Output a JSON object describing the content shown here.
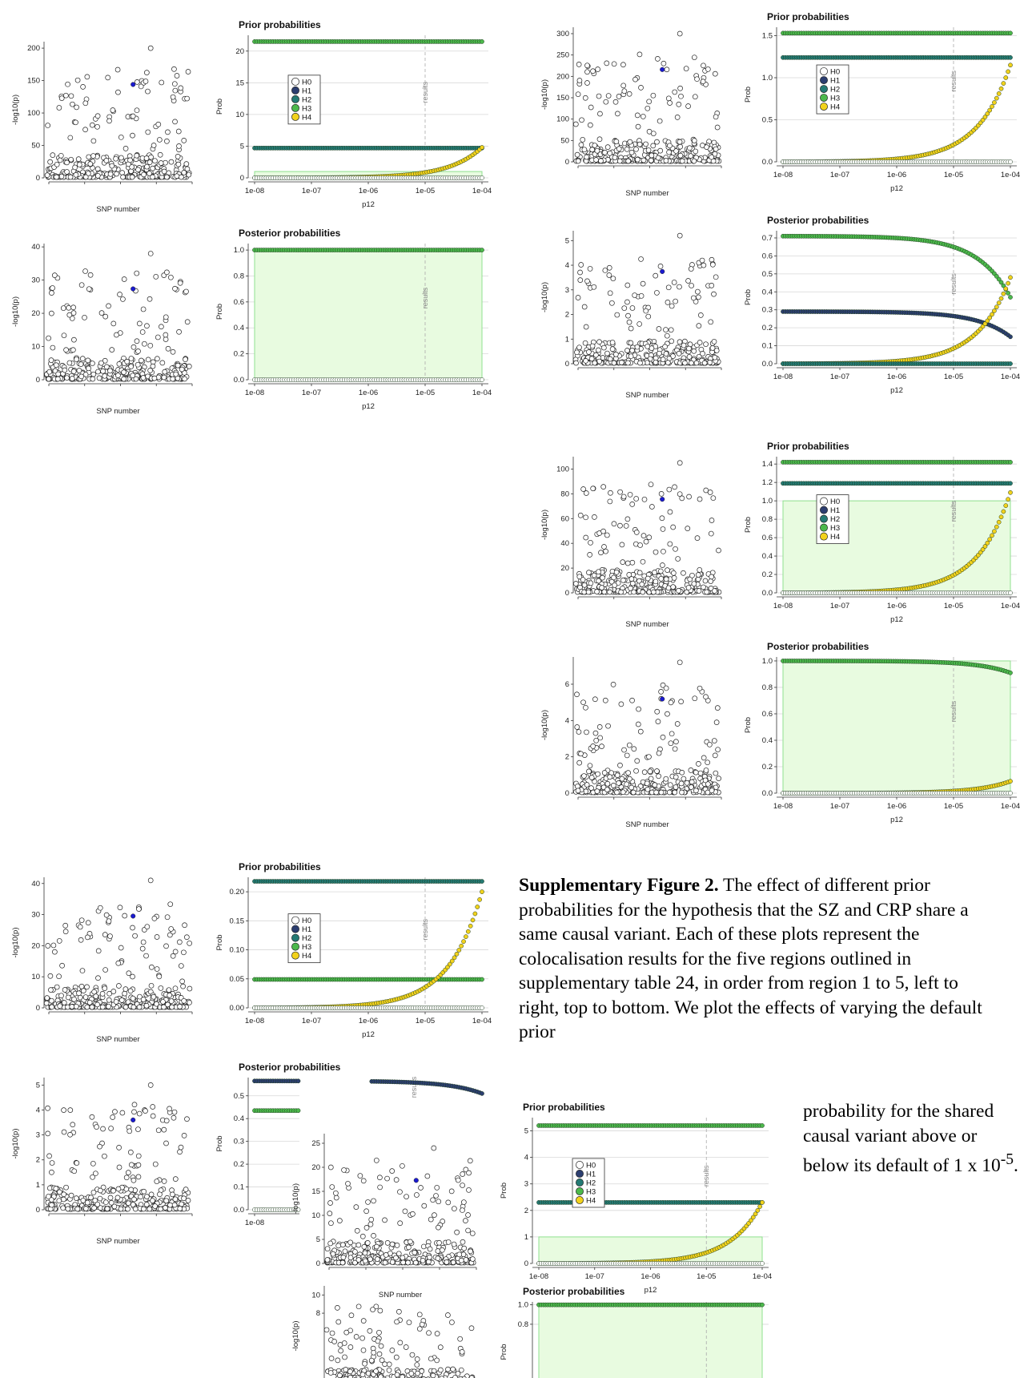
{
  "caption": {
    "label": "Supplementary Figure 2.",
    "text": " The effect of different prior probabilities for the hypothesis that the SZ and CRP share a same causal variant. Each of these plots represent the colocalisation results for the five regions outlined in supplementary table 24, in order from region 1 to 5, left to right, top to bottom. We plot the effects of varying the default prior",
    "tail_pre": "probability for the shared causal variant above or below its default of 1 x 10",
    "tail_sup": "-5",
    "tail_post": "."
  },
  "colors": {
    "H0": "#ffffff",
    "H1": "#2c3e70",
    "H2": "#247a74",
    "H3": "#4cb94c",
    "H4": "#f2d21c",
    "shade": "#e8fbe0",
    "shade_edge": "#8fe08f",
    "highlight_snp": "#1a1ad0"
  },
  "chart_data": [
    {
      "id": "r1-manhattan-prior",
      "type": "scatter",
      "xlabel": "SNP number",
      "ylabel": "-log10(p)",
      "yticks": [
        "0",
        "50",
        "100",
        "150",
        "200"
      ],
      "ylim": [
        0,
        210
      ],
      "lead_value": 200
    },
    {
      "id": "r1-prior",
      "type": "line",
      "title": "Prior probabilities",
      "xlabel": "p12",
      "ylabel": "Prob",
      "xticks": [
        "1e-08",
        "1e-07",
        "1e-06",
        "1e-05",
        "1e-04"
      ],
      "yticks": [
        "0",
        "5",
        "10",
        "15",
        "20"
      ],
      "ylim": [
        0,
        22.5
      ],
      "legend_position": "left",
      "legend": [
        "H0",
        "H1",
        "H2",
        "H3",
        "H4"
      ],
      "results_label": "results",
      "results_at": "1e-05",
      "shade_top": 1,
      "series": [
        {
          "name": "H3",
          "start": 21.5,
          "end": 21.5
        },
        {
          "name": "H2",
          "start": 4.7,
          "end": 4.7
        },
        {
          "name": "H4",
          "start": 0.002,
          "end": 4.8
        },
        {
          "name": "H0",
          "start": 0.0,
          "end": 0.0
        }
      ]
    },
    {
      "id": "r1-manhattan-posterior",
      "type": "scatter",
      "xlabel": "SNP number",
      "ylabel": "-log10(p)",
      "yticks": [
        "0",
        "10",
        "20",
        "30",
        "40"
      ],
      "ylim": [
        0,
        41
      ],
      "lead_value": 38
    },
    {
      "id": "r1-posterior",
      "type": "line",
      "title": "Posterior probabilities",
      "xlabel": "p12",
      "ylabel": "Prob",
      "xticks": [
        "1e-08",
        "1e-07",
        "1e-06",
        "1e-05",
        "1e-04"
      ],
      "yticks": [
        "0.0",
        "0.2",
        "0.4",
        "0.6",
        "0.8",
        "1.0"
      ],
      "ylim": [
        0,
        1.05
      ],
      "results_label": "results",
      "results_at": "1e-05",
      "shade_top": 1,
      "series": [
        {
          "name": "H3",
          "start": 1.0,
          "end": 1.0
        },
        {
          "name": "H0",
          "start": 0.0,
          "end": 0.0
        }
      ]
    },
    {
      "id": "r2-manhattan-prior",
      "type": "scatter",
      "xlabel": "SNP number",
      "ylabel": "-log10(p)",
      "yticks": [
        "0",
        "50",
        "100",
        "150",
        "200",
        "250",
        "300"
      ],
      "ylim": [
        0,
        315
      ],
      "lead_value": 300
    },
    {
      "id": "r2-prior",
      "type": "line",
      "title": "Prior probabilities",
      "xlabel": "p12",
      "ylabel": "Prob",
      "xticks": [
        "1e-08",
        "1e-07",
        "1e-06",
        "1e-05",
        "1e-04"
      ],
      "yticks": [
        "0.0",
        "0.5",
        "1.0",
        "1.5"
      ],
      "ylim": [
        0,
        1.6
      ],
      "legend_position": "left",
      "legend": [
        "H0",
        "H1",
        "H2",
        "H3",
        "H4"
      ],
      "results_label": "results",
      "results_at": "1e-05",
      "series": [
        {
          "name": "H3",
          "start": 1.53,
          "end": 1.53
        },
        {
          "name": "H2",
          "start": 1.24,
          "end": 1.24
        },
        {
          "name": "H4",
          "start": 0.0001,
          "end": 1.15
        },
        {
          "name": "H0",
          "start": 0.0,
          "end": 0.0
        }
      ]
    },
    {
      "id": "r2-manhattan-posterior",
      "type": "scatter",
      "xlabel": "SNP number",
      "ylabel": "-log10(p)",
      "yticks": [
        "0",
        "1",
        "2",
        "3",
        "4",
        "5"
      ],
      "ylim": [
        0,
        5.4
      ],
      "lead_value": 5.2
    },
    {
      "id": "r2-posterior",
      "type": "line",
      "title": "Posterior probabilities",
      "xlabel": "p12",
      "ylabel": "Prob",
      "xticks": [
        "1e-08",
        "1e-07",
        "1e-06",
        "1e-05",
        "1e-04"
      ],
      "yticks": [
        "0.0",
        "0.1",
        "0.2",
        "0.3",
        "0.4",
        "0.5",
        "0.6",
        "0.7"
      ],
      "ylim": [
        0,
        0.74
      ],
      "results_label": "results",
      "results_at": "1e-05",
      "series": [
        {
          "name": "H3",
          "start": 0.71,
          "end": 0.37,
          "curve": "decay"
        },
        {
          "name": "H1",
          "start": 0.29,
          "end": 0.15,
          "curve": "decay"
        },
        {
          "name": "H4",
          "start": 0.0001,
          "end": 0.48
        },
        {
          "name": "H2",
          "start": 0.0,
          "end": 0.0
        }
      ]
    },
    {
      "id": "r3-manhattan-prior",
      "type": "scatter",
      "xlabel": "SNP number",
      "ylabel": "-log10(p)",
      "yticks": [
        "0",
        "20",
        "40",
        "60",
        "80",
        "100"
      ],
      "ylim": [
        0,
        110
      ],
      "lead_value": 105
    },
    {
      "id": "r3-prior",
      "type": "line",
      "title": "Prior probabilities",
      "xlabel": "p12",
      "ylabel": "Prob",
      "xticks": [
        "1e-08",
        "1e-07",
        "1e-06",
        "1e-05",
        "1e-04"
      ],
      "yticks": [
        "0.0",
        "0.2",
        "0.4",
        "0.6",
        "0.8",
        "1.0",
        "1.2",
        "1.4"
      ],
      "ylim": [
        0,
        1.48
      ],
      "legend_position": "left",
      "legend": [
        "H0",
        "H1",
        "H2",
        "H3",
        "H4"
      ],
      "results_label": "results",
      "results_at": "1e-05",
      "shade_top": 1,
      "series": [
        {
          "name": "H3",
          "start": 1.42,
          "end": 1.42
        },
        {
          "name": "H2",
          "start": 1.19,
          "end": 1.19
        },
        {
          "name": "H4",
          "start": 0.0001,
          "end": 1.09
        },
        {
          "name": "H0",
          "start": 0.0,
          "end": 0.0
        }
      ]
    },
    {
      "id": "r3-manhattan-posterior",
      "type": "scatter",
      "xlabel": "SNP number",
      "ylabel": "-log10(p)",
      "yticks": [
        "0",
        "2",
        "4",
        "6"
      ],
      "ylim": [
        0,
        7.5
      ],
      "lead_value": 7.2
    },
    {
      "id": "r3-posterior",
      "type": "line",
      "title": "Posterior probabilities",
      "xlabel": "p12",
      "ylabel": "Prob",
      "xticks": [
        "1e-08",
        "1e-07",
        "1e-06",
        "1e-05",
        "1e-04"
      ],
      "yticks": [
        "0.0",
        "0.2",
        "0.4",
        "0.6",
        "0.8",
        "1.0"
      ],
      "ylim": [
        0,
        1.03
      ],
      "results_label": "results",
      "results_at": "1e-05",
      "shade_top": 1,
      "series": [
        {
          "name": "H3",
          "start": 1.0,
          "end": 0.91,
          "curve": "decay"
        },
        {
          "name": "H4",
          "start": 0.0,
          "end": 0.09
        },
        {
          "name": "H0",
          "start": 0.0,
          "end": 0.0
        }
      ]
    },
    {
      "id": "r4-manhattan-prior",
      "type": "scatter",
      "xlabel": "SNP number",
      "ylabel": "-log10(p)",
      "yticks": [
        "0",
        "10",
        "20",
        "30",
        "40"
      ],
      "ylim": [
        0,
        42
      ],
      "lead_value": 41
    },
    {
      "id": "r4-prior",
      "type": "line",
      "title": "Prior probabilities",
      "xlabel": "p12",
      "ylabel": "Prob",
      "xticks": [
        "1e-08",
        "1e-07",
        "1e-06",
        "1e-05",
        "1e-04"
      ],
      "yticks": [
        "0.00",
        "0.05",
        "0.10",
        "0.15",
        "0.20"
      ],
      "ylim": [
        0,
        0.225
      ],
      "legend_position": "left",
      "legend": [
        "H0",
        "H1",
        "H2",
        "H3",
        "H4"
      ],
      "results_label": "results",
      "results_at": "1e-05",
      "series": [
        {
          "name": "H2",
          "start": 0.218,
          "end": 0.218
        },
        {
          "name": "H3",
          "start": 0.049,
          "end": 0.049
        },
        {
          "name": "H4",
          "start": 2e-05,
          "end": 0.2
        },
        {
          "name": "H0",
          "start": 0.0,
          "end": 0.0
        }
      ]
    },
    {
      "id": "r4-manhattan-posterior",
      "type": "scatter",
      "xlabel": "SNP number",
      "ylabel": "-log10(p)",
      "yticks": [
        "0",
        "1",
        "2",
        "3",
        "4",
        "5"
      ],
      "ylim": [
        0,
        5.3
      ],
      "lead_value": 5.0
    },
    {
      "id": "r4-posterior",
      "type": "line",
      "title": "Posterior probabilities",
      "xlabel": "p12",
      "ylabel": "Prob",
      "xticks": [
        "1e-08"
      ],
      "yticks": [
        "0.0",
        "0.1",
        "0.2",
        "0.3",
        "0.4",
        "0.5"
      ],
      "ylim": [
        0,
        0.58
      ],
      "results_label": "results",
      "series": [
        {
          "name": "H1",
          "start": 0.565,
          "end": 0.51,
          "curve": "decay"
        },
        {
          "name": "H3",
          "start": 0.435,
          "end": 0.435
        },
        {
          "name": "H0",
          "start": 0.0,
          "end": 0.0
        }
      ]
    },
    {
      "id": "r5-manhattan-prior",
      "type": "scatter",
      "xlabel": "SNP number",
      "ylabel": "-log10(p)",
      "yticks": [
        "0",
        "5",
        "10",
        "15",
        "20",
        "25"
      ],
      "ylim": [
        0,
        27
      ],
      "lead_value": 24
    },
    {
      "id": "r5-prior",
      "type": "line",
      "title": "Prior probabilities",
      "xlabel": "p12",
      "ylabel": "Prob",
      "xticks": [
        "1e-08",
        "1e-07",
        "1e-06",
        "1e-05",
        "1e-04"
      ],
      "yticks": [
        "0",
        "1",
        "2",
        "3",
        "4",
        "5"
      ],
      "ylim": [
        0,
        5.5
      ],
      "legend_position": "left",
      "legend": [
        "H0",
        "H1",
        "H2",
        "H3",
        "H4"
      ],
      "results_label": "results",
      "results_at": "1e-05",
      "shade_top": 1,
      "series": [
        {
          "name": "H3",
          "start": 5.2,
          "end": 5.2
        },
        {
          "name": "H2",
          "start": 2.3,
          "end": 2.3
        },
        {
          "name": "H4",
          "start": 0.0005,
          "end": 2.3
        },
        {
          "name": "H0",
          "start": 0.0,
          "end": 0.0
        }
      ]
    },
    {
      "id": "r5-manhattan-posterior",
      "type": "scatter",
      "ylabel": "-log10(p)",
      "yticks": [
        "8",
        "10"
      ],
      "ylim": [
        0,
        11
      ]
    },
    {
      "id": "r5-posterior",
      "type": "line",
      "title": "Posterior probabilities",
      "ylabel": "Prob",
      "yticks": [
        "0.8",
        "1.0"
      ],
      "ylim": [
        0,
        1.03
      ],
      "results_at": "1e-05",
      "shade_top": 1,
      "series": [
        {
          "name": "H3",
          "start": 1.0,
          "end": 1.0
        }
      ]
    }
  ]
}
